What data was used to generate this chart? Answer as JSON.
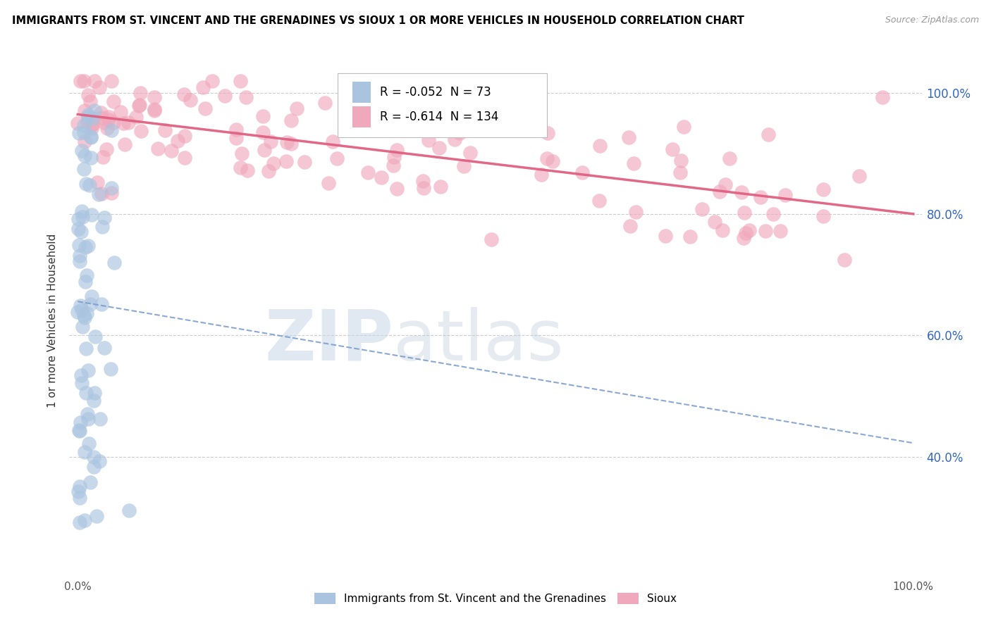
{
  "title": "IMMIGRANTS FROM ST. VINCENT AND THE GRENADINES VS SIOUX 1 OR MORE VEHICLES IN HOUSEHOLD CORRELATION CHART",
  "source": "Source: ZipAtlas.com",
  "ylabel": "1 or more Vehicles in Household",
  "blue_R": -0.052,
  "blue_N": 73,
  "pink_R": -0.614,
  "pink_N": 134,
  "blue_label": "Immigrants from St. Vincent and the Grenadines",
  "pink_label": "Sioux",
  "blue_color": "#aac4e0",
  "pink_color": "#f0a8bc",
  "blue_line_color": "#7799cc",
  "pink_line_color": "#e06080",
  "watermark_zip": "ZIP",
  "watermark_atlas": "atlas",
  "xmin": 0,
  "xmax": 100,
  "ymin": 20,
  "ymax": 105,
  "ytick_labels": [
    "40.0%",
    "60.0%",
    "80.0%",
    "100.0%"
  ],
  "ytick_values": [
    40,
    60,
    80,
    100
  ]
}
